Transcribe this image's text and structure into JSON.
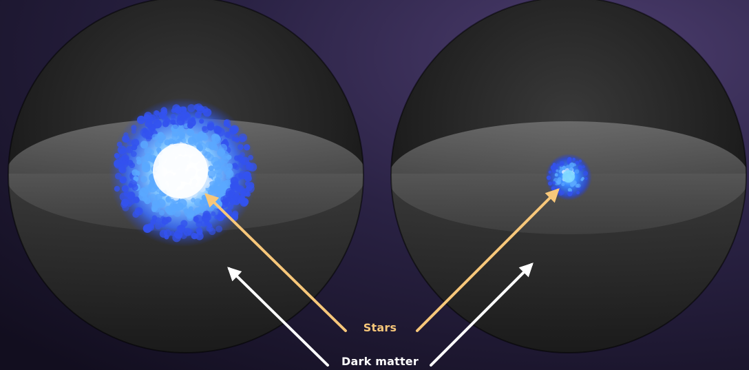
{
  "labels": {
    "stars": "Stars",
    "dark_matter": "Dark matter"
  },
  "colors": {
    "stars_label": "#f7c77a",
    "stars_arrow": "#f7c77a",
    "dark_matter_label": "#ffffff",
    "dark_matter_arrow": "#ffffff",
    "star_cluster": "#3b6cff",
    "background": "#1c1730"
  },
  "spheres": [
    {
      "name": "left-halo",
      "star_cluster_size": "large"
    },
    {
      "name": "right-halo",
      "star_cluster_size": "small"
    }
  ]
}
